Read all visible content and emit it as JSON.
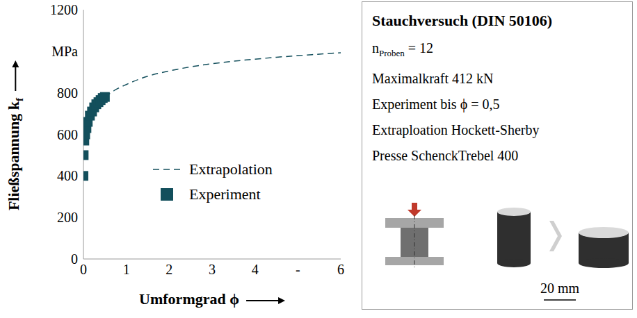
{
  "chart_data": {
    "type": "line",
    "series": [
      {
        "name": "Extrapolation",
        "type": "line",
        "color": "#134f5c",
        "line_style": "dashed",
        "x": [
          0.5,
          0.75,
          1,
          1.5,
          2,
          2.5,
          3,
          3.5,
          4,
          4.5,
          5,
          5.5,
          6
        ],
        "values": [
          780,
          815,
          840,
          880,
          905,
          925,
          940,
          952,
          962,
          971,
          979,
          986,
          993
        ]
      },
      {
        "name": "Experiment",
        "type": "scatter",
        "color": "#134f5c",
        "marker": "square",
        "x": [
          0,
          0.005,
          0.02,
          0.04,
          0.07,
          0.1,
          0.15,
          0.2,
          0.25,
          0.3,
          0.35,
          0.4,
          0.45,
          0.5
        ],
        "values": [
          400,
          500,
          570,
          600,
          630,
          660,
          690,
          710,
          730,
          745,
          755,
          765,
          775,
          780
        ]
      }
    ],
    "xlabel": "Umformgrad ϕ",
    "ylabel": {
      "text": "Fließspannung k",
      "sub": "f"
    },
    "xlim": [
      0,
      6
    ],
    "ylim": [
      0,
      1200
    ],
    "xticks": [
      0,
      1,
      2,
      3,
      4,
      {
        "value": 5,
        "label": "-"
      },
      6
    ],
    "yticks": [
      0,
      200,
      400,
      600,
      800,
      {
        "value": 1000,
        "label": "MPa"
      },
      1200
    ],
    "grid": false,
    "legend": "center"
  },
  "panel": {
    "title": "Stauchversuch (DIN 50106)",
    "lines": [
      {
        "text": "n",
        "sub": "Proben",
        "after": " = 12"
      },
      {
        "text": "Maximalkraft 412 kN"
      },
      {
        "text": "Experiment bis ϕ = 0,5"
      },
      {
        "text": "Extraploation Hockett-Sherby"
      },
      {
        "text": "Presse SchenckTrebel 400"
      }
    ],
    "scale_bar": "20 mm"
  }
}
